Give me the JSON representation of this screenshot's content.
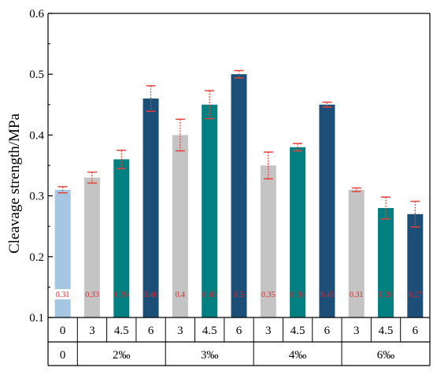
{
  "chart_data": {
    "type": "bar",
    "ylabel": "Cleavage strength/MPa",
    "xlabel": "",
    "ylim": [
      0.1,
      0.6
    ],
    "yticks": [
      "0.1",
      "0.2",
      "0.3",
      "0.4",
      "0.5",
      "0.6"
    ],
    "grid": false,
    "bars": [
      {
        "x": "0",
        "group": "0",
        "value": 0.31,
        "error": 0.005,
        "color": "#a6c7e2",
        "label": "0.31"
      },
      {
        "x": "3",
        "group": "2‰",
        "value": 0.33,
        "error": 0.009,
        "color": "#c4c4c4",
        "label": "0.33"
      },
      {
        "x": "4.5",
        "group": "2‰",
        "value": 0.36,
        "error": 0.015,
        "color": "#008080",
        "label": "0.36"
      },
      {
        "x": "6",
        "group": "2‰",
        "value": 0.46,
        "error": 0.021,
        "color": "#1c4f78",
        "label": "0.46"
      },
      {
        "x": "3",
        "group": "3‰",
        "value": 0.4,
        "error": 0.026,
        "color": "#c4c4c4",
        "label": "0.4"
      },
      {
        "x": "4.5",
        "group": "3‰",
        "value": 0.45,
        "error": 0.023,
        "color": "#008080",
        "label": "0.45"
      },
      {
        "x": "6",
        "group": "3‰",
        "value": 0.5,
        "error": 0.006,
        "color": "#1c4f78",
        "label": "0.5"
      },
      {
        "x": "3",
        "group": "4‰",
        "value": 0.35,
        "error": 0.022,
        "color": "#c4c4c4",
        "label": "0.35"
      },
      {
        "x": "4.5",
        "group": "4‰",
        "value": 0.38,
        "error": 0.006,
        "color": "#008080",
        "label": "0.38"
      },
      {
        "x": "6",
        "group": "4‰",
        "value": 0.45,
        "error": 0.004,
        "color": "#1c4f78",
        "label": "0.45"
      },
      {
        "x": "3",
        "group": "6‰",
        "value": 0.31,
        "error": 0.003,
        "color": "#c4c4c4",
        "label": "0.31"
      },
      {
        "x": "4.5",
        "group": "6‰",
        "value": 0.28,
        "error": 0.018,
        "color": "#008080",
        "label": "0.28"
      },
      {
        "x": "6",
        "group": "6‰",
        "value": 0.27,
        "error": 0.021,
        "color": "#1c4f78",
        "label": "0.27"
      }
    ],
    "groups": [
      {
        "label": "0",
        "span": 1
      },
      {
        "label": "2‰",
        "span": 3
      },
      {
        "label": "3‰",
        "span": 3
      },
      {
        "label": "4‰",
        "span": 3
      },
      {
        "label": "6‰",
        "span": 3
      }
    ],
    "error_bar_color": "#e8403a"
  }
}
